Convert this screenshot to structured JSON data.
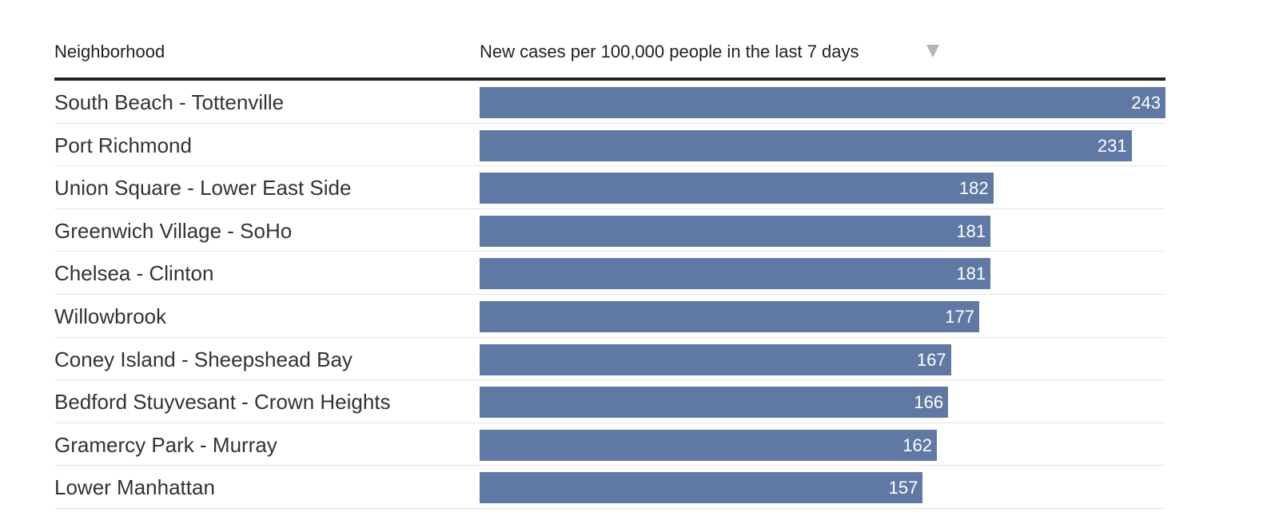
{
  "header": {
    "neighborhood_label": "Neighborhood",
    "value_label": "New cases per 100,000 people in the last 7 days",
    "sort_icon": "triangle-down-icon"
  },
  "colors": {
    "bar": "#6079a4",
    "sort_arrow": "#b5b5b5"
  },
  "chart_data": {
    "type": "bar",
    "orientation": "horizontal",
    "categories": [
      "South Beach - Tottenville",
      "Port Richmond",
      "Union Square - Lower East Side",
      "Greenwich Village - SoHo",
      "Chelsea - Clinton",
      "Willowbrook",
      "Coney Island - Sheepshead Bay",
      "Bedford Stuyvesant - Crown Heights",
      "Gramercy Park - Murray",
      "Lower Manhattan"
    ],
    "values": [
      243,
      231,
      182,
      181,
      181,
      177,
      167,
      166,
      162,
      157
    ],
    "xlim": [
      0,
      243
    ],
    "grid": false
  }
}
